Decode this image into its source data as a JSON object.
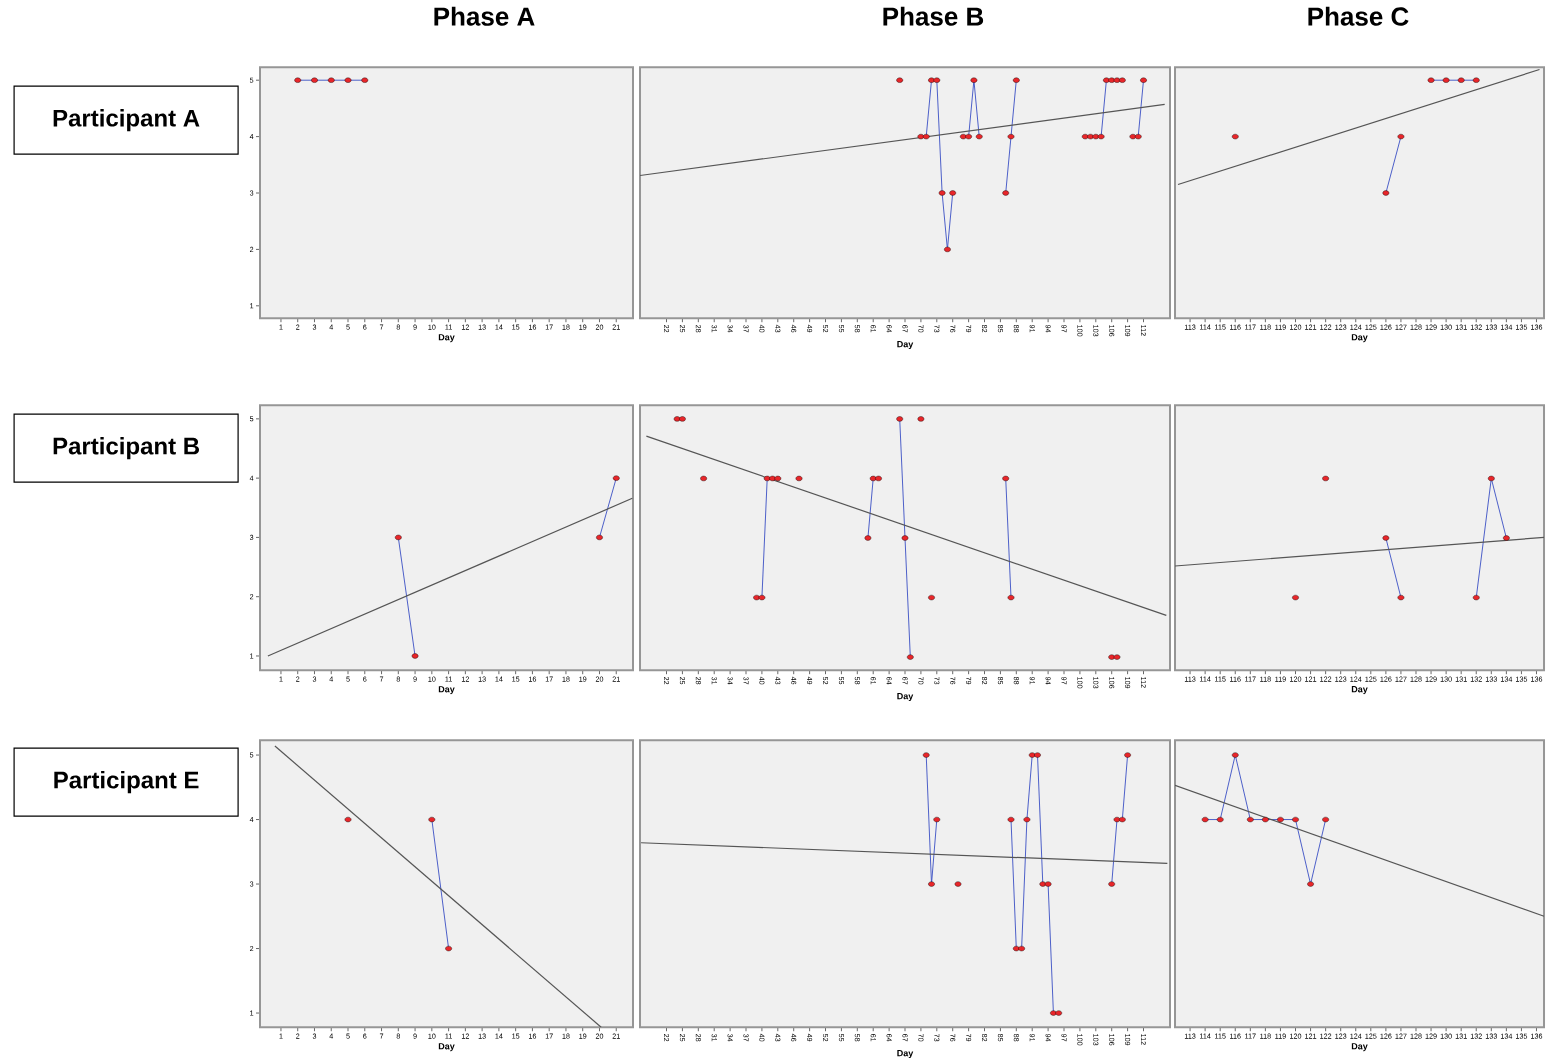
{
  "chart_data": [
    {
      "type": "line",
      "title": "Phase A",
      "ylabel": "Participant A",
      "xlabel": "Day",
      "marker": "circle",
      "xlim": [
        -0.25,
        22
      ],
      "ylim": [
        0.78,
        5.23
      ],
      "xticks": [
        1,
        2,
        3,
        4,
        5,
        6,
        7,
        8,
        9,
        10,
        11,
        12,
        13,
        14,
        15,
        16,
        17,
        18,
        19,
        20,
        21
      ],
      "yticks": [
        1,
        2,
        3,
        4,
        5
      ],
      "series": [
        {
          "x": [
            2,
            3,
            4,
            5,
            6
          ],
          "values": [
            5,
            5,
            5,
            5,
            5
          ],
          "color": "#3a4fc4",
          "colors": [
            "#e8262a",
            "#e8262a",
            "#e8262a",
            "#e8262a",
            "#e8262a"
          ]
        }
      ]
    },
    {
      "type": "line",
      "title": "Phase B",
      "xlabel": "Day",
      "marker": "circle",
      "tick_labels": "x",
      "xlim": [
        17,
        117
      ],
      "ylim": [
        0.78,
        5.23
      ],
      "xticks": [
        22,
        25,
        28,
        31,
        34,
        37,
        40,
        43,
        46,
        49,
        52,
        55,
        58,
        61,
        64,
        67,
        70,
        73,
        76,
        79,
        82,
        85,
        88,
        91,
        94,
        97,
        100,
        103,
        106,
        109,
        112
      ],
      "yticks": [
        1,
        2,
        3,
        4,
        5
      ],
      "series": [
        {
          "x": [
            66,
            67,
            70,
            71,
            72,
            73,
            74,
            75,
            76,
            77,
            78,
            79,
            80,
            81,
            82,
            86,
            87,
            88,
            89,
            101,
            102,
            103,
            104,
            105,
            106,
            107,
            108,
            109,
            110,
            111,
            112
          ],
          "values": [
            5,
            null,
            4,
            4,
            5,
            5,
            3,
            2,
            3,
            null,
            4,
            4,
            5,
            4,
            null,
            3,
            4,
            5,
            null,
            4,
            4,
            4,
            4,
            5,
            5,
            5,
            5,
            null,
            4,
            4,
            5
          ],
          "color": "#3a4fc4",
          "colors": [
            "#e8262a",
            null,
            "#e8262a",
            "#e8262a",
            "#e8262a",
            "#e8262a",
            "#e8262a",
            "#e8262a",
            "#e8262a",
            null,
            "#e8262a",
            "#e8262a",
            "#e8262a",
            "#e8262a",
            null,
            "#e8262a",
            "#e8262a",
            "#e8262a",
            null,
            "#e8262a",
            "#e8262a",
            "#e8262a",
            "#e8262a",
            "#e8262a",
            "#e8262a",
            "#e8262a",
            "#e8262a",
            null,
            "#e8262a",
            "#e8262a",
            "#e8262a"
          ]
        },
        {
          "type": "line",
          "marker": "none",
          "x": [
            17,
            116
          ],
          "values": [
            3.31,
            4.57
          ],
          "color": "#555555"
        }
      ]
    },
    {
      "type": "line",
      "title": "Phase C",
      "xlabel": "Day",
      "marker": "circle",
      "tick_labels": "x",
      "xlim": [
        112,
        136.5
      ],
      "ylim": [
        0.78,
        5.23
      ],
      "xticks": [
        113,
        114,
        115,
        116,
        117,
        118,
        119,
        120,
        121,
        122,
        123,
        124,
        125,
        126,
        127,
        128,
        129,
        130,
        131,
        132,
        133,
        134,
        135,
        136
      ],
      "yticks": [
        1,
        2,
        3,
        4,
        5
      ],
      "series": [
        {
          "x": [
            116,
            117,
            126,
            127,
            128,
            129,
            130,
            131,
            132
          ],
          "values": [
            4,
            null,
            3,
            4,
            null,
            5,
            5,
            5,
            5
          ],
          "color": "#3a4fc4",
          "colors": [
            "#e8262a",
            null,
            "#e8262a",
            "#e8262a",
            null,
            "#e8262a",
            "#e8262a",
            "#e8262a",
            "#e8262a"
          ]
        },
        {
          "type": "line",
          "marker": "none",
          "x": [
            112.2,
            136.2
          ],
          "values": [
            3.15,
            5.19
          ],
          "color": "#555555"
        }
      ]
    },
    {
      "type": "line",
      "ylabel": "Participant B",
      "xlabel": "Day",
      "marker": "circle",
      "xlim": [
        -0.25,
        22
      ],
      "ylim": [
        0.76,
        5.23
      ],
      "xticks": [
        1,
        2,
        3,
        4,
        5,
        6,
        7,
        8,
        9,
        10,
        11,
        12,
        13,
        14,
        15,
        16,
        17,
        18,
        19,
        20,
        21
      ],
      "yticks": [
        1,
        2,
        3,
        4,
        5
      ],
      "series": [
        {
          "x": [
            8,
            9,
            10,
            20,
            21
          ],
          "values": [
            3,
            1,
            null,
            3,
            4
          ],
          "color": "#3a4fc4",
          "colors": [
            "#e8262a",
            "#e8262a",
            null,
            "#e8262a",
            "#e8262a"
          ]
        },
        {
          "type": "line",
          "marker": "none",
          "x": [
            0.22,
            21.96
          ],
          "values": [
            1.0,
            3.66
          ],
          "color": "#555555"
        }
      ]
    },
    {
      "type": "line",
      "xlabel": "Day",
      "marker": "circle",
      "tick_labels": "x",
      "xlim": [
        17,
        117
      ],
      "ylim": [
        0.78,
        5.23
      ],
      "xticks": [
        22,
        25,
        28,
        31,
        34,
        37,
        40,
        43,
        46,
        49,
        52,
        55,
        58,
        61,
        64,
        67,
        70,
        73,
        76,
        79,
        82,
        85,
        88,
        91,
        94,
        97,
        100,
        103,
        106,
        109,
        112
      ],
      "yticks": [
        1,
        2,
        3,
        4,
        5
      ],
      "series": [
        {
          "x": [
            24,
            25,
            26,
            29,
            30,
            39,
            40,
            41,
            42,
            43,
            44,
            47,
            48,
            60,
            61,
            62,
            63,
            66,
            67,
            68,
            69,
            70,
            71,
            72,
            73,
            86,
            87,
            88,
            106,
            107
          ],
          "values": [
            5,
            5,
            null,
            4,
            null,
            2,
            2,
            4,
            4,
            4,
            null,
            4,
            null,
            3,
            4,
            4,
            null,
            5,
            3,
            1,
            null,
            5,
            null,
            2,
            null,
            4,
            2,
            null,
            1,
            1
          ],
          "color": "#3a4fc4",
          "colors": [
            "#e8262a",
            "#e8262a",
            null,
            "#e8262a",
            null,
            "#e8262a",
            "#e8262a",
            "#e8262a",
            "#e8262a",
            "#e8262a",
            null,
            "#e8262a",
            null,
            "#e8262a",
            "#e8262a",
            "#e8262a",
            null,
            "#e8262a",
            "#e8262a",
            "#e8262a",
            null,
            "#e8262a",
            null,
            "#e8262a",
            null,
            "#e8262a",
            "#e8262a",
            null,
            "#e8262a",
            "#e8262a"
          ]
        },
        {
          "type": "line",
          "marker": "none",
          "x": [
            18.2,
            116.3
          ],
          "values": [
            4.71,
            1.7
          ],
          "color": "#555555"
        }
      ]
    },
    {
      "type": "line",
      "xlabel": "Day",
      "marker": "circle",
      "tick_labels": "x",
      "xlim": [
        112,
        136.5
      ],
      "ylim": [
        0.78,
        5.23
      ],
      "xticks": [
        113,
        114,
        115,
        116,
        117,
        118,
        119,
        120,
        121,
        122,
        123,
        124,
        125,
        126,
        127,
        128,
        129,
        130,
        131,
        132,
        133,
        134,
        135,
        136
      ],
      "yticks": [
        1,
        2,
        3,
        4,
        5
      ],
      "series": [
        {
          "x": [
            120,
            121,
            122,
            123,
            126,
            127,
            128,
            132,
            133,
            134
          ],
          "values": [
            2,
            null,
            4,
            null,
            3,
            2,
            null,
            2,
            4,
            3
          ],
          "color": "#3a4fc4",
          "colors": [
            "#e8262a",
            null,
            "#e8262a",
            null,
            "#e8262a",
            "#e8262a",
            null,
            "#e8262a",
            "#e8262a",
            "#e8262a"
          ]
        },
        {
          "type": "line",
          "marker": "none",
          "x": [
            112,
            136.5
          ],
          "values": [
            2.53,
            3.01
          ],
          "color": "#555555"
        }
      ]
    },
    {
      "type": "line",
      "ylabel": "Participant E",
      "xlabel": "Day",
      "marker": "circle",
      "xlim": [
        -0.25,
        22
      ],
      "ylim": [
        0.78,
        5.23
      ],
      "xticks": [
        1,
        2,
        3,
        4,
        5,
        6,
        7,
        8,
        9,
        10,
        11,
        12,
        13,
        14,
        15,
        16,
        17,
        18,
        19,
        20,
        21
      ],
      "yticks": [
        1,
        2,
        3,
        4,
        5
      ],
      "series": [
        {
          "x": [
            5,
            6,
            10,
            11
          ],
          "values": [
            4,
            null,
            4,
            2
          ],
          "color": "#3a4fc4",
          "colors": [
            "#e8262a",
            null,
            "#e8262a",
            "#e8262a"
          ]
        },
        {
          "type": "line",
          "marker": "none",
          "x": [
            0.64,
            20.1
          ],
          "values": [
            5.14,
            0.78
          ],
          "color": "#555555"
        }
      ]
    },
    {
      "type": "line",
      "xlabel": "Day",
      "marker": "circle",
      "tick_labels": "x",
      "xlim": [
        17,
        117
      ],
      "ylim": [
        0.78,
        5.23
      ],
      "xticks": [
        22,
        25,
        28,
        31,
        34,
        37,
        40,
        43,
        46,
        49,
        52,
        55,
        58,
        61,
        64,
        67,
        70,
        73,
        76,
        79,
        82,
        85,
        88,
        91,
        94,
        97,
        100,
        103,
        106,
        109,
        112
      ],
      "yticks": [
        1,
        2,
        3,
        4,
        5
      ],
      "series": [
        {
          "x": [
            71,
            72,
            73,
            74,
            77,
            78,
            87,
            88,
            89,
            90,
            91,
            92,
            93,
            94,
            95,
            96,
            97,
            106,
            107,
            108,
            109
          ],
          "values": [
            5,
            3,
            4,
            null,
            3,
            null,
            4,
            2,
            2,
            4,
            5,
            5,
            3,
            3,
            1,
            1,
            null,
            3,
            4,
            4,
            5
          ],
          "color": "#3a4fc4",
          "colors": [
            "#e8262a",
            "#e8262a",
            "#e8262a",
            null,
            "#e8262a",
            null,
            "#e8262a",
            "#e8262a",
            "#e8262a",
            "#e8262a",
            "#e8262a",
            "#e8262a",
            "#e8262a",
            "#e8262a",
            "#e8262a",
            "#e8262a",
            null,
            "#e8262a",
            "#e8262a",
            "#e8262a",
            "#e8262a"
          ]
        },
        {
          "type": "line",
          "marker": "none",
          "x": [
            17.2,
            116.5
          ],
          "values": [
            3.64,
            3.32
          ],
          "color": "#555555"
        }
      ]
    },
    {
      "type": "line",
      "xlabel": "Day",
      "marker": "circle",
      "tick_labels": "x",
      "xlim": [
        112,
        136.5
      ],
      "ylim": [
        0.78,
        5.23
      ],
      "xticks": [
        113,
        114,
        115,
        116,
        117,
        118,
        119,
        120,
        121,
        122,
        123,
        124,
        125,
        126,
        127,
        128,
        129,
        130,
        131,
        132,
        133,
        134,
        135,
        136
      ],
      "yticks": [
        1,
        2,
        3,
        4,
        5
      ],
      "series": [
        {
          "x": [
            114,
            115,
            116,
            117,
            118,
            119,
            120,
            121,
            122
          ],
          "values": [
            4,
            4,
            5,
            4,
            4,
            4,
            4,
            3,
            4
          ],
          "color": "#3a4fc4",
          "colors": [
            "#e8262a",
            "#e8262a",
            "#e8262a",
            "#e8262a",
            "#e8262a",
            "#e8262a",
            "#e8262a",
            "#e8262a",
            "#e8262a"
          ]
        },
        {
          "type": "line",
          "marker": "none",
          "x": [
            112,
            136.5
          ],
          "values": [
            4.53,
            2.5
          ],
          "color": "#555555"
        }
      ]
    }
  ]
}
